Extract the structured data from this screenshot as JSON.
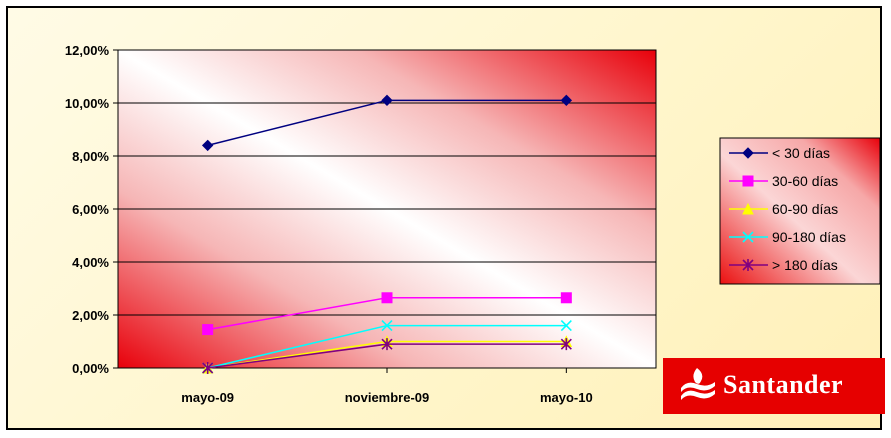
{
  "chart_data": {
    "type": "line",
    "categories": [
      "mayo-09",
      "noviembre-09",
      "mayo-10"
    ],
    "y_ticks": [
      "0,00%",
      "2,00%",
      "4,00%",
      "6,00%",
      "8,00%",
      "10,00%",
      "12,00%"
    ],
    "ylim": [
      0,
      12
    ],
    "grid": true,
    "legend_position": "right",
    "series": [
      {
        "name": "< 30 días",
        "values": [
          8.4,
          10.1,
          10.1
        ],
        "color": "#000080",
        "marker": "diamond"
      },
      {
        "name": "30-60 días",
        "values": [
          1.45,
          2.65,
          2.65
        ],
        "color": "#ff00ff",
        "marker": "square"
      },
      {
        "name": "60-90 días",
        "values": [
          0.0,
          1.0,
          1.0
        ],
        "color": "#ffff00",
        "marker": "triangle"
      },
      {
        "name": "90-180 días",
        "values": [
          0.0,
          1.6,
          1.6
        ],
        "color": "#00ffff",
        "marker": "x"
      },
      {
        "name": "> 180 días",
        "values": [
          0.0,
          0.9,
          0.9
        ],
        "color": "#800080",
        "marker": "star"
      }
    ]
  },
  "logo": {
    "text": "Santander",
    "color": "#e60000"
  }
}
